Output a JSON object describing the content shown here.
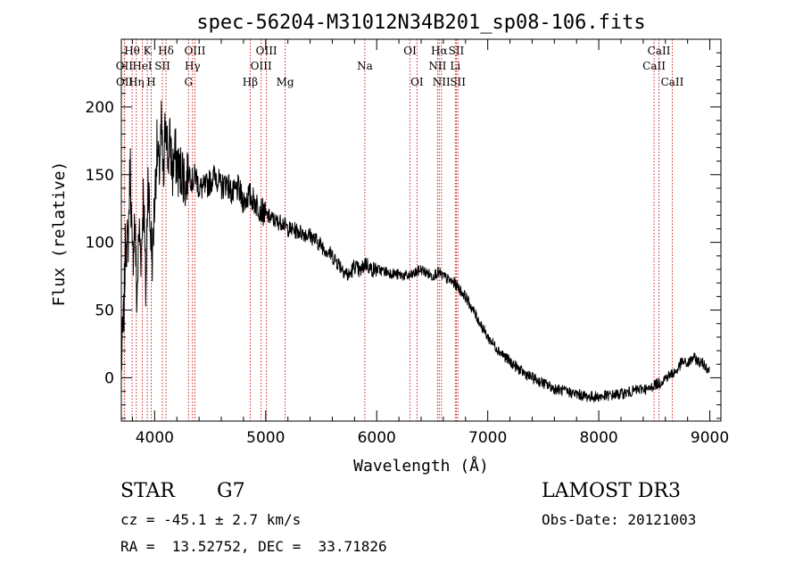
{
  "chart_data": {
    "type": "line",
    "title": "spec-56204-M31012N34B201_sp08-106.fits",
    "xlabel": "Wavelength (Å)",
    "ylabel": "Flux (relative)",
    "xlim": [
      3700,
      9100
    ],
    "ylim": [
      -32,
      250
    ],
    "xticks": [
      4000,
      5000,
      6000,
      7000,
      8000,
      9000
    ],
    "yticks": [
      0,
      50,
      100,
      150,
      200
    ],
    "series": [
      {
        "name": "spectrum",
        "x": [
          3700,
          3720,
          3740,
          3760,
          3780,
          3800,
          3820,
          3840,
          3860,
          3880,
          3900,
          3920,
          3940,
          3960,
          3980,
          4000,
          4020,
          4040,
          4060,
          4080,
          4100,
          4120,
          4140,
          4160,
          4180,
          4200,
          4220,
          4250,
          4280,
          4300,
          4320,
          4340,
          4370,
          4400,
          4450,
          4500,
          4550,
          4600,
          4650,
          4700,
          4750,
          4800,
          4850,
          4900,
          4950,
          5000,
          5050,
          5100,
          5150,
          5200,
          5300,
          5400,
          5500,
          5600,
          5700,
          5750,
          5800,
          5850,
          5900,
          5950,
          6000,
          6100,
          6200,
          6300,
          6400,
          6500,
          6550,
          6600,
          6650,
          6700,
          6750,
          6800,
          6900,
          7000,
          7100,
          7200,
          7300,
          7400,
          7500,
          7600,
          7700,
          7800,
          7900,
          8000,
          8100,
          8200,
          8300,
          8400,
          8450,
          8500,
          8550,
          8600,
          8700,
          8750,
          8800,
          8850,
          8900,
          8950,
          9000
        ],
        "y": [
          10,
          40,
          105,
          95,
          160,
          80,
          120,
          55,
          110,
          90,
          140,
          60,
          150,
          110,
          90,
          130,
          170,
          150,
          185,
          140,
          200,
          160,
          175,
          150,
          165,
          160,
          150,
          155,
          140,
          155,
          150,
          145,
          150,
          140,
          140,
          145,
          150,
          140,
          145,
          135,
          140,
          130,
          135,
          130,
          125,
          120,
          118,
          115,
          115,
          110,
          108,
          105,
          98,
          90,
          80,
          75,
          83,
          78,
          85,
          80,
          80,
          78,
          76,
          75,
          80,
          75,
          78,
          75,
          72,
          70,
          65,
          60,
          45,
          30,
          20,
          12,
          5,
          0,
          -4,
          -8,
          -10,
          -12,
          -14,
          -14,
          -13,
          -12,
          -10,
          -8,
          -9,
          -5,
          -4,
          0,
          5,
          12,
          10,
          15,
          12,
          10,
          5
        ]
      }
    ],
    "lines": [
      {
        "label": "Hθ",
        "x": 3797,
        "row": 1
      },
      {
        "label": "OII",
        "x": 3727,
        "row": 2
      },
      {
        "label": "OII",
        "x": 3729,
        "row": 3
      },
      {
        "label": "Hη",
        "x": 3835,
        "row": 3
      },
      {
        "label": "HeI",
        "x": 3889,
        "row": 2
      },
      {
        "label": "K",
        "x": 3934,
        "row": 1
      },
      {
        "label": "SII",
        "x": 4070,
        "row": 2
      },
      {
        "label": "H",
        "x": 3969,
        "row": 3
      },
      {
        "label": "Hδ",
        "x": 4102,
        "row": 1
      },
      {
        "label": "OIII",
        "x": 4363,
        "row": 1
      },
      {
        "label": "Hγ",
        "x": 4341,
        "row": 2
      },
      {
        "label": "G",
        "x": 4305,
        "row": 3
      },
      {
        "label": "Hβ",
        "x": 4861,
        "row": 3
      },
      {
        "label": "OIII",
        "x": 5007,
        "row": 1
      },
      {
        "label": "OIII",
        "x": 4959,
        "row": 2
      },
      {
        "label": "Mg",
        "x": 5175,
        "row": 3
      },
      {
        "label": "Na",
        "x": 5893,
        "row": 2
      },
      {
        "label": "OI",
        "x": 6300,
        "row": 1
      },
      {
        "label": "OI",
        "x": 6363,
        "row": 3
      },
      {
        "label": "Hα",
        "x": 6563,
        "row": 1
      },
      {
        "label": "NII",
        "x": 6548,
        "row": 2
      },
      {
        "label": "NII",
        "x": 6583,
        "row": 3
      },
      {
        "label": "SII",
        "x": 6717,
        "row": 1
      },
      {
        "label": "Li",
        "x": 6708,
        "row": 2
      },
      {
        "label": "SII",
        "x": 6731,
        "row": 3
      },
      {
        "label": "CaII",
        "x": 8542,
        "row": 1
      },
      {
        "label": "CaII",
        "x": 8498,
        "row": 2
      },
      {
        "label": "CaII",
        "x": 8662,
        "row": 3
      }
    ]
  },
  "info": {
    "class": "STAR",
    "subclass": "G7",
    "survey": "LAMOST DR3",
    "redshift": "cz = -45.1 ± 2.7 km/s",
    "obs_date": "Obs-Date: 20121003",
    "coords": "RA =  13.52752, DEC =  33.71826"
  }
}
